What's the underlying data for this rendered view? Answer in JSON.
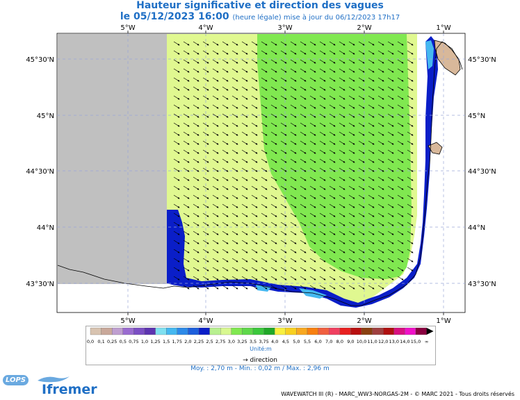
{
  "title": {
    "line1": "Hauteur significative et direction des vagues",
    "date": "le 05/12/2023 16:00",
    "update": "(heure légale) mise à jour du 06/12/2023 17h17"
  },
  "axes": {
    "lon_labels": [
      "5°W",
      "4°W",
      "3°W",
      "2°W",
      "1°W"
    ],
    "lat_labels": [
      "45°30'N",
      "45°N",
      "44°30'N",
      "44°N",
      "43°30'N"
    ]
  },
  "legend": {
    "values": [
      "0,0",
      "0,1",
      "0,25",
      "0,5",
      "0,75",
      "1,0",
      "1,25",
      "1,5",
      "1,75",
      "2,0",
      "2,25",
      "2,5",
      "2,75",
      "3,0",
      "3,25",
      "3,5",
      "3,75",
      "4,0",
      "4,5",
      "5,0",
      "5,5",
      "6,0",
      "7,0",
      "8,0",
      "9,0",
      "10,0",
      "11,0",
      "12,0",
      "13,0",
      "14,0",
      "15,0",
      "∞"
    ],
    "colors": [
      "#d8c3b0",
      "#c9a89a",
      "#bf9fd0",
      "#9a6cd0",
      "#7b4fc4",
      "#5d34b0",
      "#7fe0f0",
      "#45b8f0",
      "#2d8ae8",
      "#1d5fdc",
      "#0a1ec8",
      "#b8f090",
      "#d8f890",
      "#80e850",
      "#5fd84a",
      "#3cc83c",
      "#20a828",
      "#f8f040",
      "#f8d020",
      "#f8a820",
      "#f88010",
      "#f06040",
      "#f04060",
      "#e82020",
      "#b81010",
      "#8a4010",
      "#a04040",
      "#b01010",
      "#d81080",
      "#f010c8",
      "#8a0040"
    ],
    "unit": "Unité:m"
  },
  "direction_label": "direction",
  "stats": "Moy. : 2,70 m   -   Min. : 0,02 m / Max. : 2,96 m",
  "footer": "WAVEWATCH III (R) - MARC_WW3-NORGAS-2M - © MARC 2021 - Tous droits réservés",
  "logos": {
    "lops": "LOPS",
    "ifremer": "Ifremer"
  },
  "colors": {
    "title": "#1f6fc5",
    "land": "#c0c0c0",
    "light_green": "#e0f890",
    "green": "#80e850",
    "blue": "#0a1ec8"
  }
}
